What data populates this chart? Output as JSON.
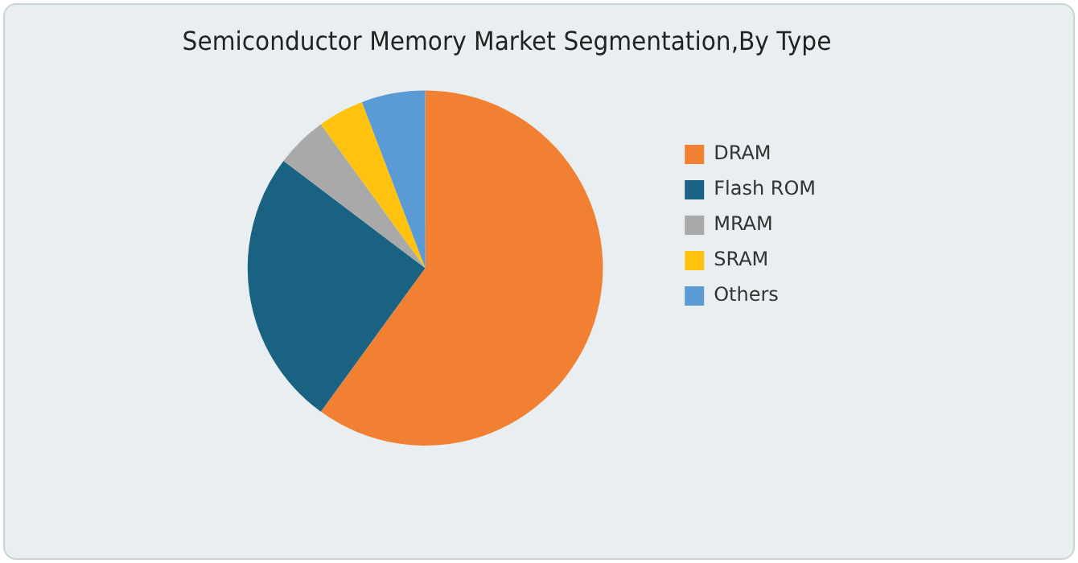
{
  "chart_data": {
    "type": "pie",
    "title": "Semiconductor Memory Market Segmentation,By Type",
    "categories": [
      "DRAM",
      "Flash ROM",
      "MRAM",
      "SRAM",
      "Others"
    ],
    "values": [
      60,
      25.3,
      4.7,
      4.2,
      5.8
    ],
    "colors": [
      "#f28033",
      "#1a6282",
      "#a9a9a9",
      "#ffc20e",
      "#5b9bd5"
    ],
    "legend": "right"
  }
}
